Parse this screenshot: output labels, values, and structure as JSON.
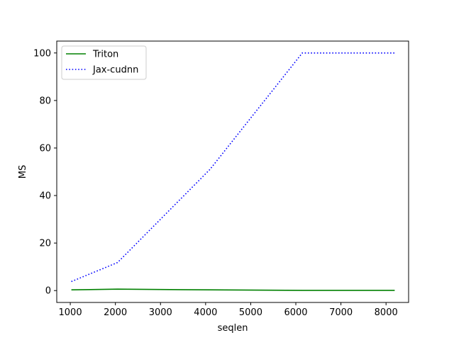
{
  "chart_data": {
    "type": "line",
    "xlabel": "seqlen",
    "ylabel": "MS",
    "xlim": [
      700,
      8500
    ],
    "ylim": [
      -5,
      105
    ],
    "xticks": [
      1000,
      2000,
      3000,
      4000,
      5000,
      6000,
      7000,
      8000
    ],
    "yticks": [
      0,
      20,
      40,
      60,
      80,
      100
    ],
    "grid": false,
    "legend_position": "top-left",
    "series": [
      {
        "name": "Triton",
        "color": "#008000",
        "linestyle": "solid",
        "x": [
          1024,
          2048,
          4096,
          6144,
          8192
        ],
        "y": [
          0.3,
          0.6,
          0.3,
          0.1,
          0.1
        ]
      },
      {
        "name": "Jax-cudnn",
        "color": "#0000ff",
        "linestyle": "dotted",
        "x": [
          1024,
          2048,
          4096,
          6144,
          8192
        ],
        "y": [
          3.8,
          11.8,
          51.0,
          100.0,
          100.0
        ]
      }
    ]
  }
}
